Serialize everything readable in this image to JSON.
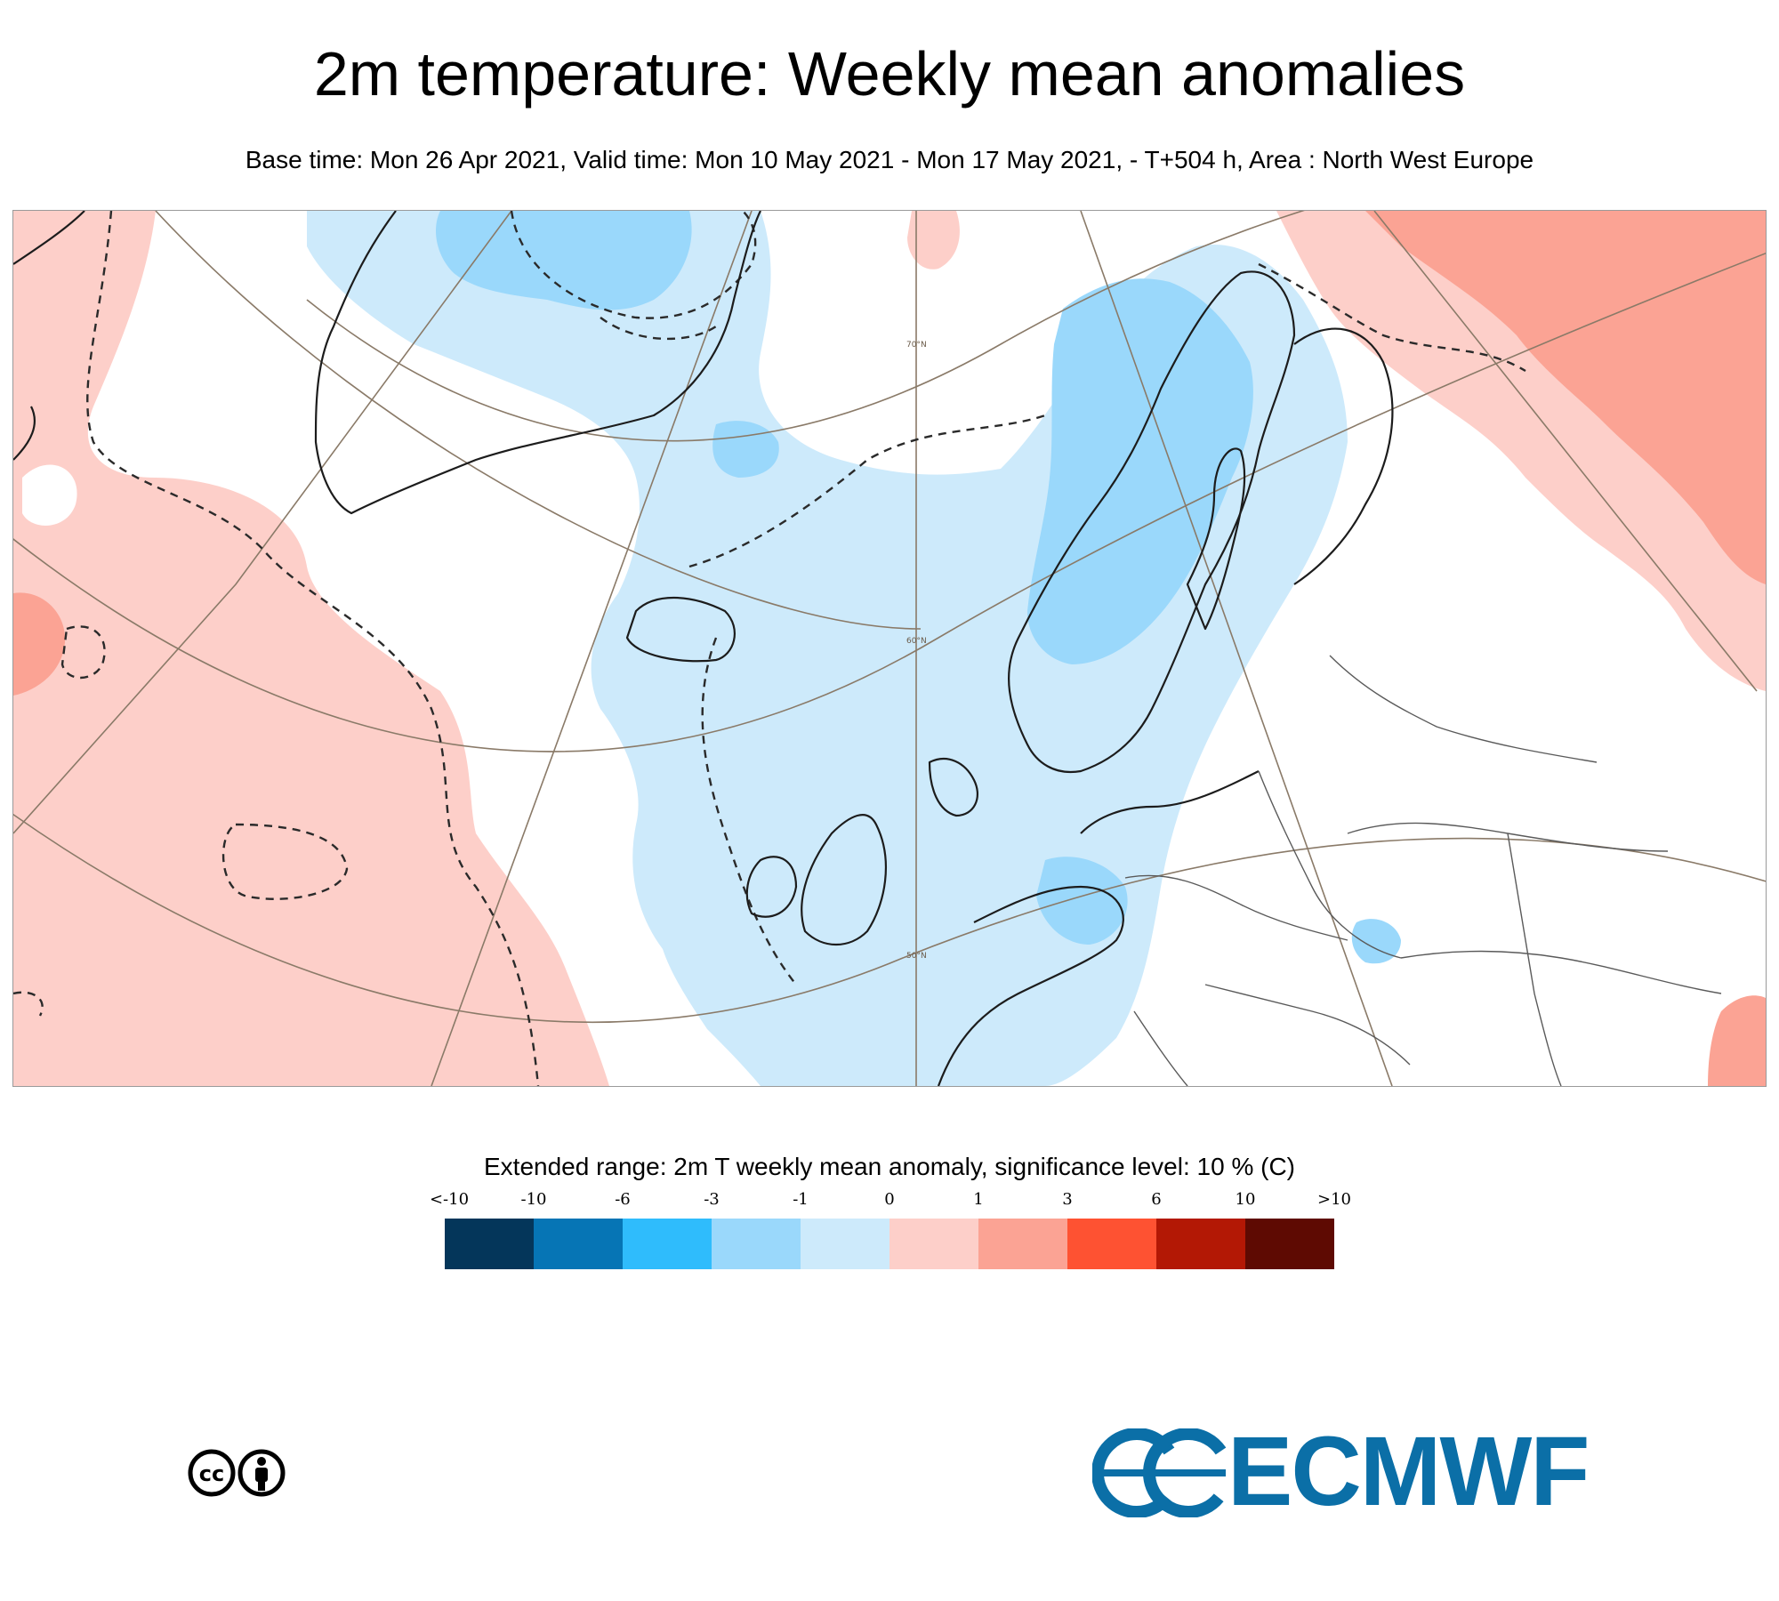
{
  "title": "2m temperature: Weekly mean anomalies",
  "subtitle": "Base time: Mon 26 Apr 2021, Valid time: Mon 10 May 2021 - Mon 17 May 2021, - T+504 h, Area : North West Europe",
  "map": {
    "projection": "polar stereographic",
    "latitude_labels": [
      "70°N",
      "60°N",
      "50°N"
    ],
    "colors": {
      "cold_weak": "#cdeafb",
      "cold_moderate": "#9ad8fb",
      "warm_weak": "#fdcfc9",
      "warm_moderate": "#fba394",
      "graticule": "#8a7a68",
      "coast": "#222222",
      "border": "#555555"
    }
  },
  "legend": {
    "title": "Extended range: 2m T weekly mean anomaly, significance level: 10 % (C)",
    "ticks": [
      "<-10",
      "-10",
      "-6",
      "-3",
      "-1",
      "0",
      "1",
      "3",
      "6",
      "10",
      ">10"
    ],
    "colors": [
      "#04365a",
      "#0675b5",
      "#2fbcfc",
      "#9ad8fb",
      "#cdeafb",
      "#fdcfc9",
      "#fba394",
      "#fe5232",
      "#b31805",
      "#5e0a02"
    ]
  },
  "logos": {
    "cc": "creative-commons-by-icon",
    "ecmwf_text": "ECMWF",
    "ecmwf_brand_color": "#0b6fa7"
  }
}
